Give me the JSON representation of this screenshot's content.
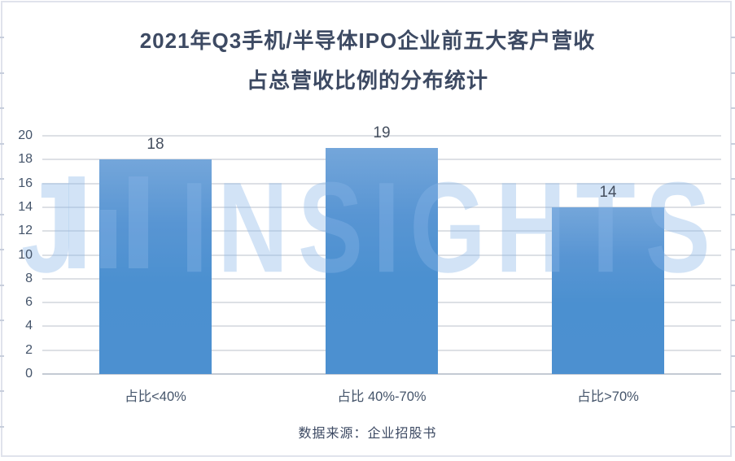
{
  "title": {
    "line1": "2021年Q3手机/半导体IPO企业前五大客户营收",
    "line2": "占总营收比例的分布统计"
  },
  "source": {
    "text": "数据来源：企业招股书"
  },
  "watermark": {
    "prefix": "J",
    "word": "INSIGHTS"
  },
  "colors": {
    "bar_top": "#74A6DA",
    "bar_main": "#4C90D0",
    "title_text": "#3D4A63",
    "axis_text": "#44546A",
    "gridline": "#DDE0E5",
    "baseline": "#C4CAD4",
    "frame": "#E0E3EC",
    "watermark": "rgba(137,182,232,0.38)"
  },
  "chart_data": {
    "type": "bar",
    "title": "2021年Q3手机/半导体IPO企业前五大客户营收占总营收比例的分布统计",
    "categories": [
      "占比<40%",
      "占比 40%-70%",
      "占比>70%"
    ],
    "values": [
      18,
      19,
      14
    ],
    "data_labels": [
      "18",
      "19",
      "14"
    ],
    "xlabel": "",
    "ylabel": "",
    "ylim": [
      0,
      20
    ],
    "y_ticks": [
      0,
      2,
      4,
      6,
      8,
      10,
      12,
      14,
      16,
      18,
      20
    ],
    "grid": true,
    "legend": false,
    "source_note": "数据来源：企业招股书"
  }
}
